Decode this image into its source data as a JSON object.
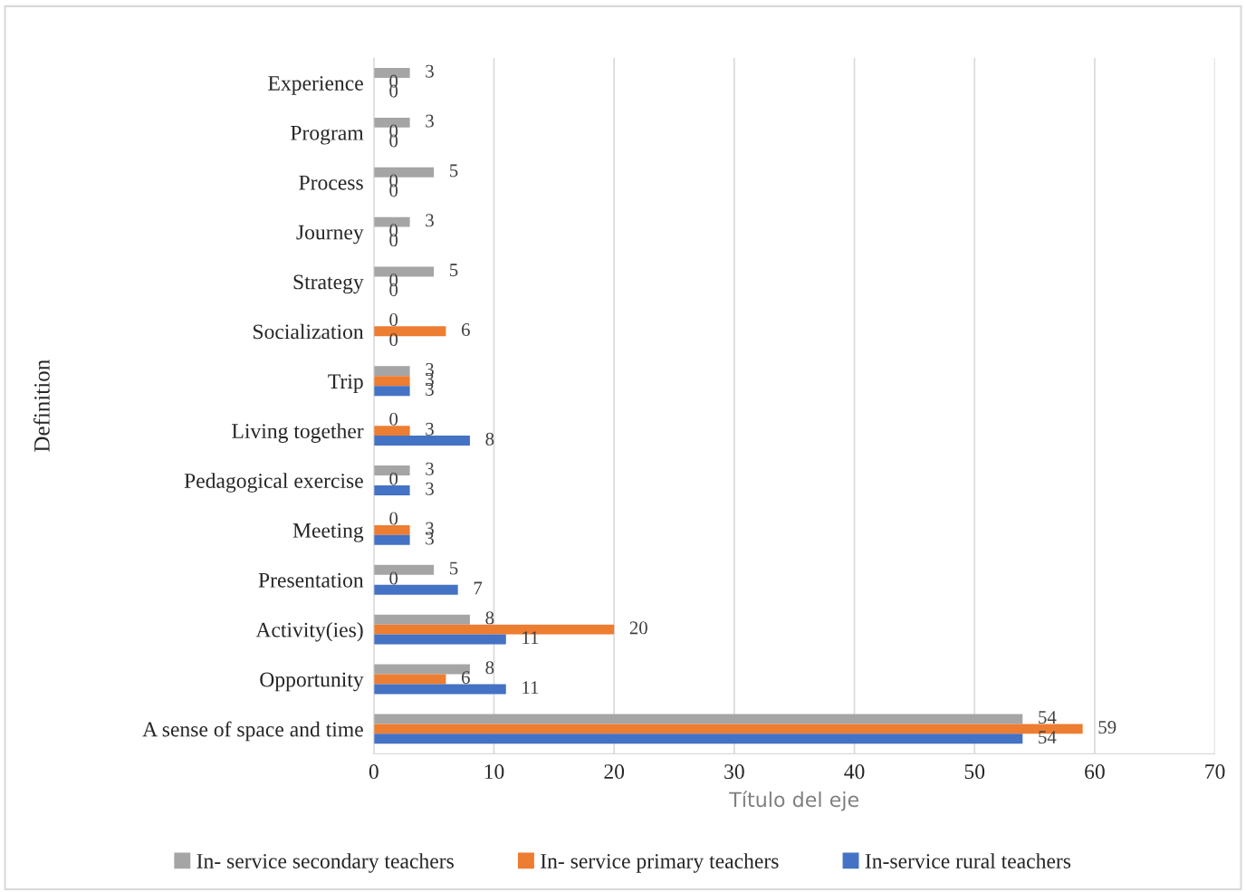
{
  "chart_data": {
    "type": "bar",
    "orientation": "horizontal",
    "xlabel": "Título del eje",
    "ylabel": "Definition",
    "categories": [
      "Experience",
      "Program",
      "Process",
      "Journey",
      "Strategy",
      "Socialization",
      "Trip",
      "Living together",
      "Pedagogical exercise",
      "Meeting",
      "Presentation",
      "Activity(ies)",
      "Opportunity",
      "A sense of space and time"
    ],
    "series": [
      {
        "name": "In- service secondary teachers",
        "color": "#a5a5a5",
        "values": [
          3,
          3,
          5,
          3,
          5,
          0,
          3,
          0,
          3,
          0,
          5,
          8,
          8,
          54
        ]
      },
      {
        "name": "In- service primary teachers",
        "color": "#ed7d31",
        "values": [
          0,
          0,
          0,
          0,
          0,
          6,
          3,
          3,
          0,
          3,
          0,
          20,
          6,
          59
        ]
      },
      {
        "name": "In-service rural teachers",
        "color": "#4472c4",
        "values": [
          0,
          0,
          0,
          0,
          0,
          0,
          3,
          8,
          3,
          3,
          7,
          11,
          11,
          54
        ]
      }
    ],
    "xlim": [
      0,
      70
    ],
    "xticks": [
      0,
      10,
      20,
      30,
      40,
      50,
      60,
      70
    ],
    "grid": "x",
    "legend": "bottom",
    "data_labels": true
  }
}
